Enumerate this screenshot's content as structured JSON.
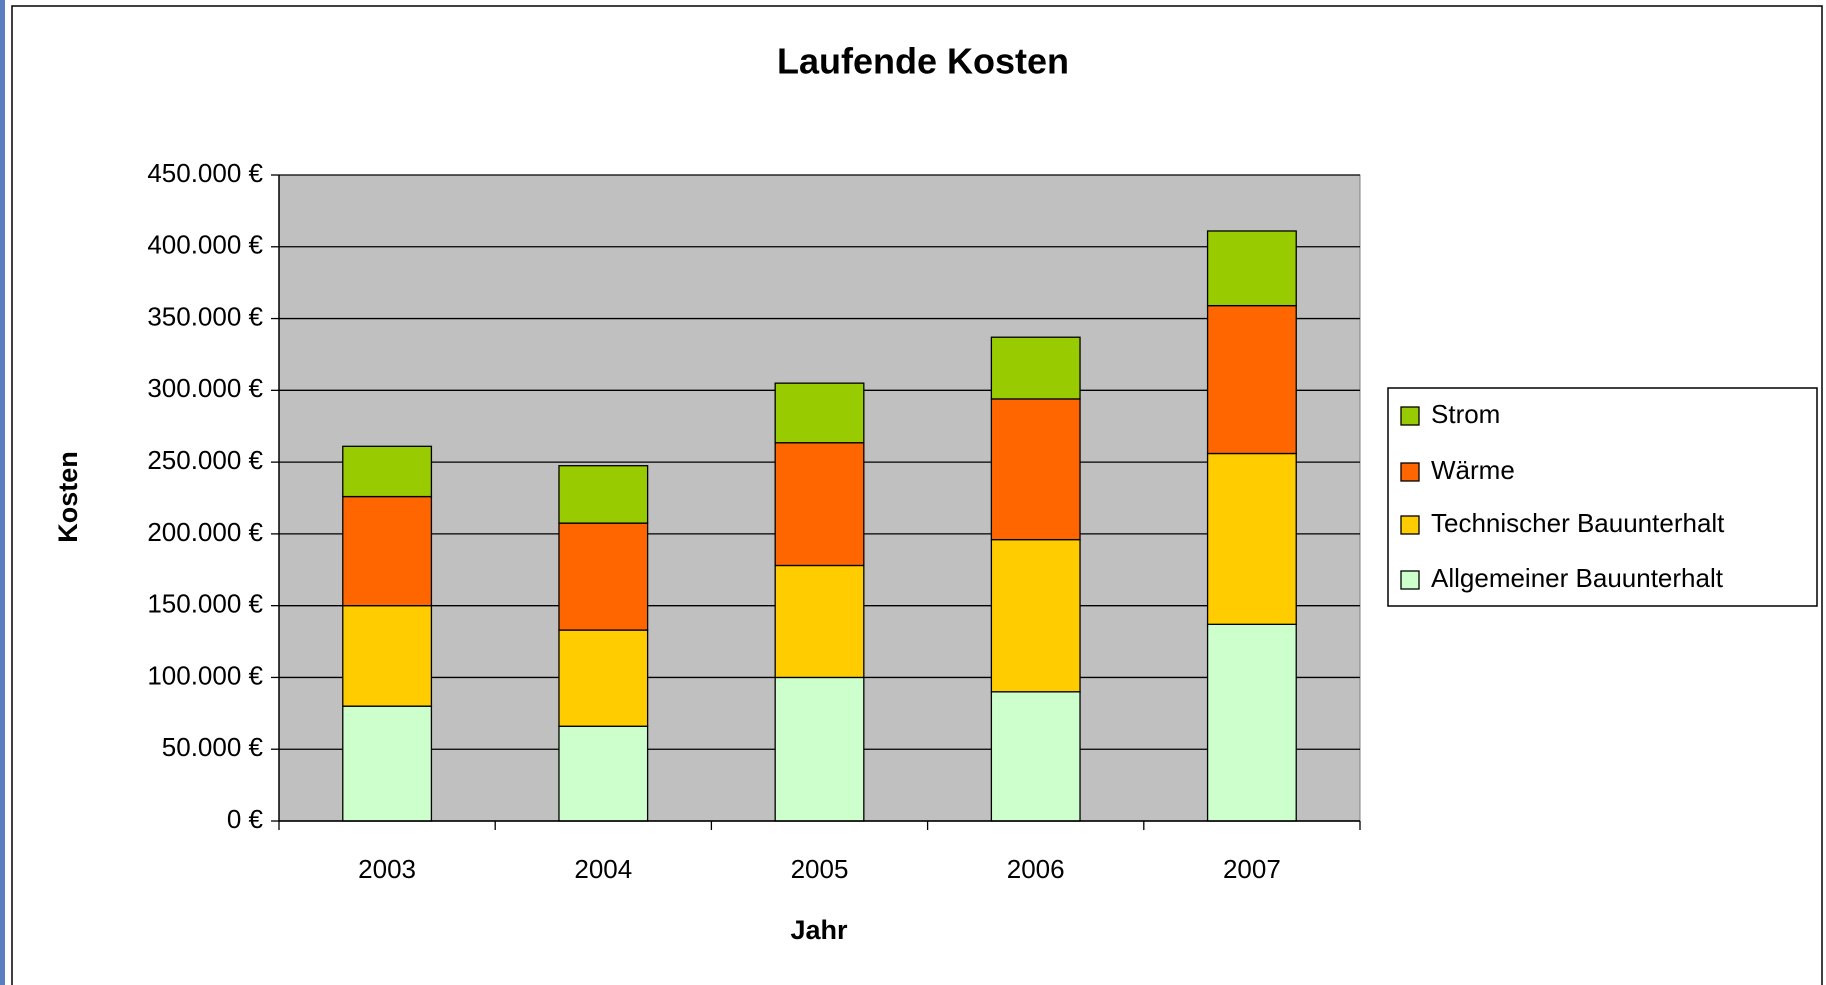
{
  "chart_data": {
    "type": "bar",
    "stacked": true,
    "title": "Laufende Kosten",
    "x_label": "Jahr",
    "y_label": "Kosten",
    "categories": [
      "2003",
      "2004",
      "2005",
      "2006",
      "2007"
    ],
    "series": [
      {
        "name": "Allgemeiner Bauunterhalt",
        "color": "#ccffcc",
        "values": [
          80000,
          66000,
          100000,
          90000,
          137000
        ]
      },
      {
        "name": "Technischer Bauunterhalt",
        "color": "#ffcc00",
        "values": [
          70000,
          67000,
          78000,
          106000,
          119000
        ]
      },
      {
        "name": "Wärme",
        "color": "#ff6600",
        "values": [
          76000,
          74500,
          85500,
          98000,
          103000
        ]
      },
      {
        "name": "Strom",
        "color": "#99cc00",
        "values": [
          35000,
          40000,
          41500,
          43000,
          52000
        ]
      }
    ],
    "ylim": [
      0,
      450000
    ],
    "yticks": [
      {
        "value": 0,
        "label": "0 €"
      },
      {
        "value": 50000,
        "label": "50.000 €"
      },
      {
        "value": 100000,
        "label": "100.000 €"
      },
      {
        "value": 150000,
        "label": "150.000 €"
      },
      {
        "value": 200000,
        "label": "200.000 €"
      },
      {
        "value": 250000,
        "label": "250.000 €"
      },
      {
        "value": 300000,
        "label": "300.000 €"
      },
      {
        "value": 350000,
        "label": "350.000 €"
      },
      {
        "value": 400000,
        "label": "400.000 €"
      },
      {
        "value": 450000,
        "label": "450.000 €"
      }
    ],
    "grid": true,
    "legend": "right",
    "plot_background": "#c0c0c0"
  }
}
